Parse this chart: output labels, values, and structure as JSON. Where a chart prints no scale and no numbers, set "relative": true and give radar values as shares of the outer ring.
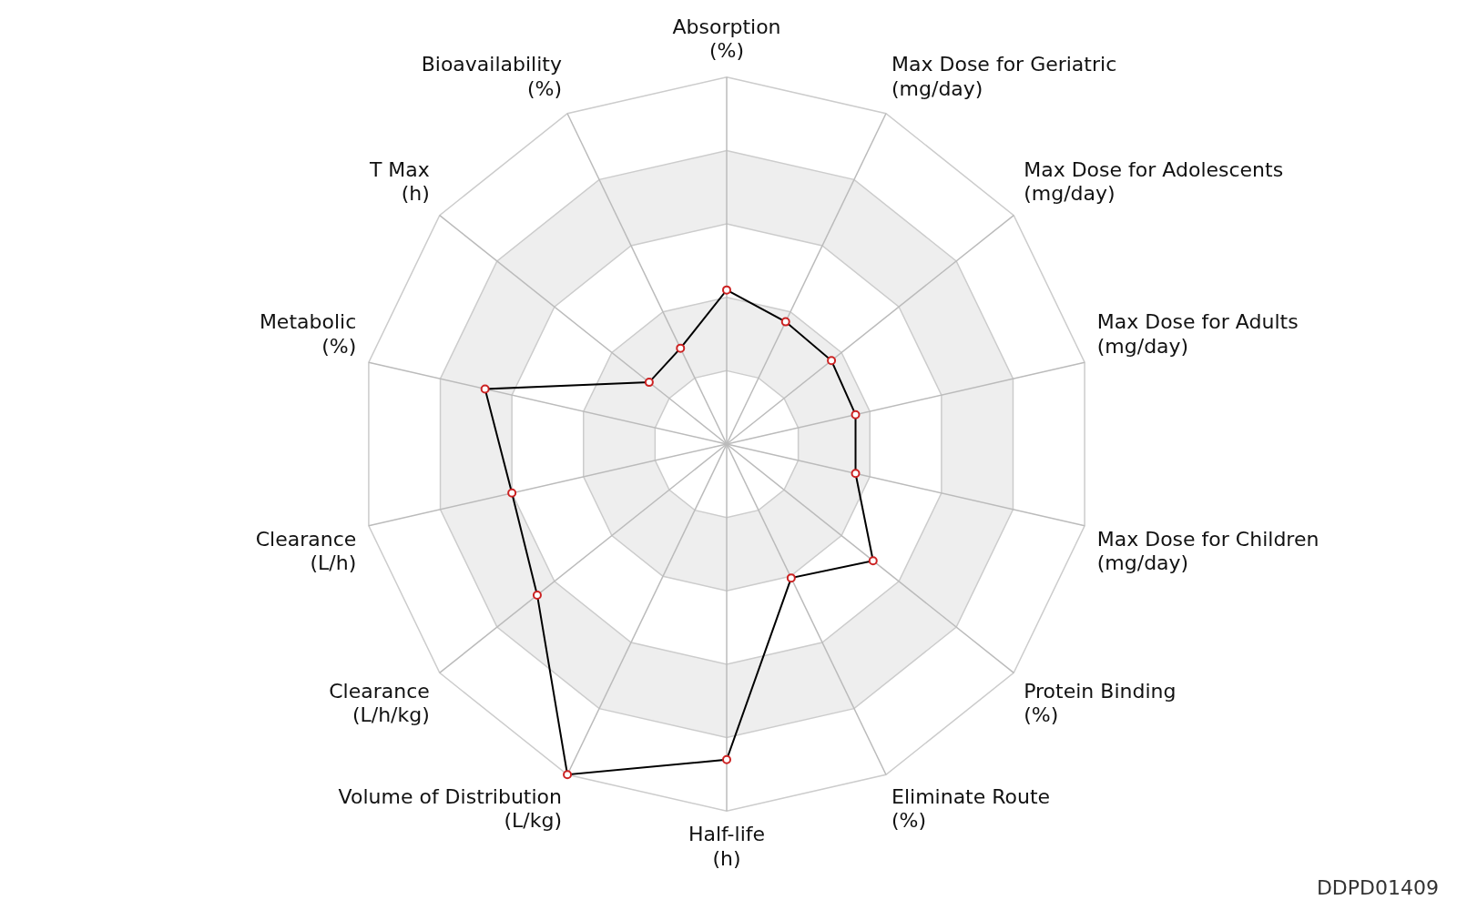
{
  "chart_data": {
    "type": "radar",
    "relative": true,
    "categories": [
      "Absorption (%)",
      "Max Dose for Geriatric (mg/day)",
      "Max Dose for Adolescents (mg/day)",
      "Max Dose for Adults (mg/day)",
      "Max Dose for Children (mg/day)",
      "Protein Binding (%)",
      "Eliminate Route (%)",
      "Half-life (h)",
      "Volume of Distribution (L/kg)",
      "Clearance (L/h/kg)",
      "Clearance (L/h)",
      "Metabolic (%)",
      "T Max (h)",
      "Bioavailability (%)"
    ],
    "series": [
      {
        "color": "#000000",
        "values": [
          0.42,
          0.37,
          0.365,
          0.36,
          0.36,
          0.51,
          0.405,
          0.86,
          1.0,
          0.66,
          0.6,
          0.675,
          0.27,
          0.29
        ]
      }
    ],
    "marker": "circle",
    "legend": false,
    "annotations": [
      "DDPD01409"
    ]
  }
}
